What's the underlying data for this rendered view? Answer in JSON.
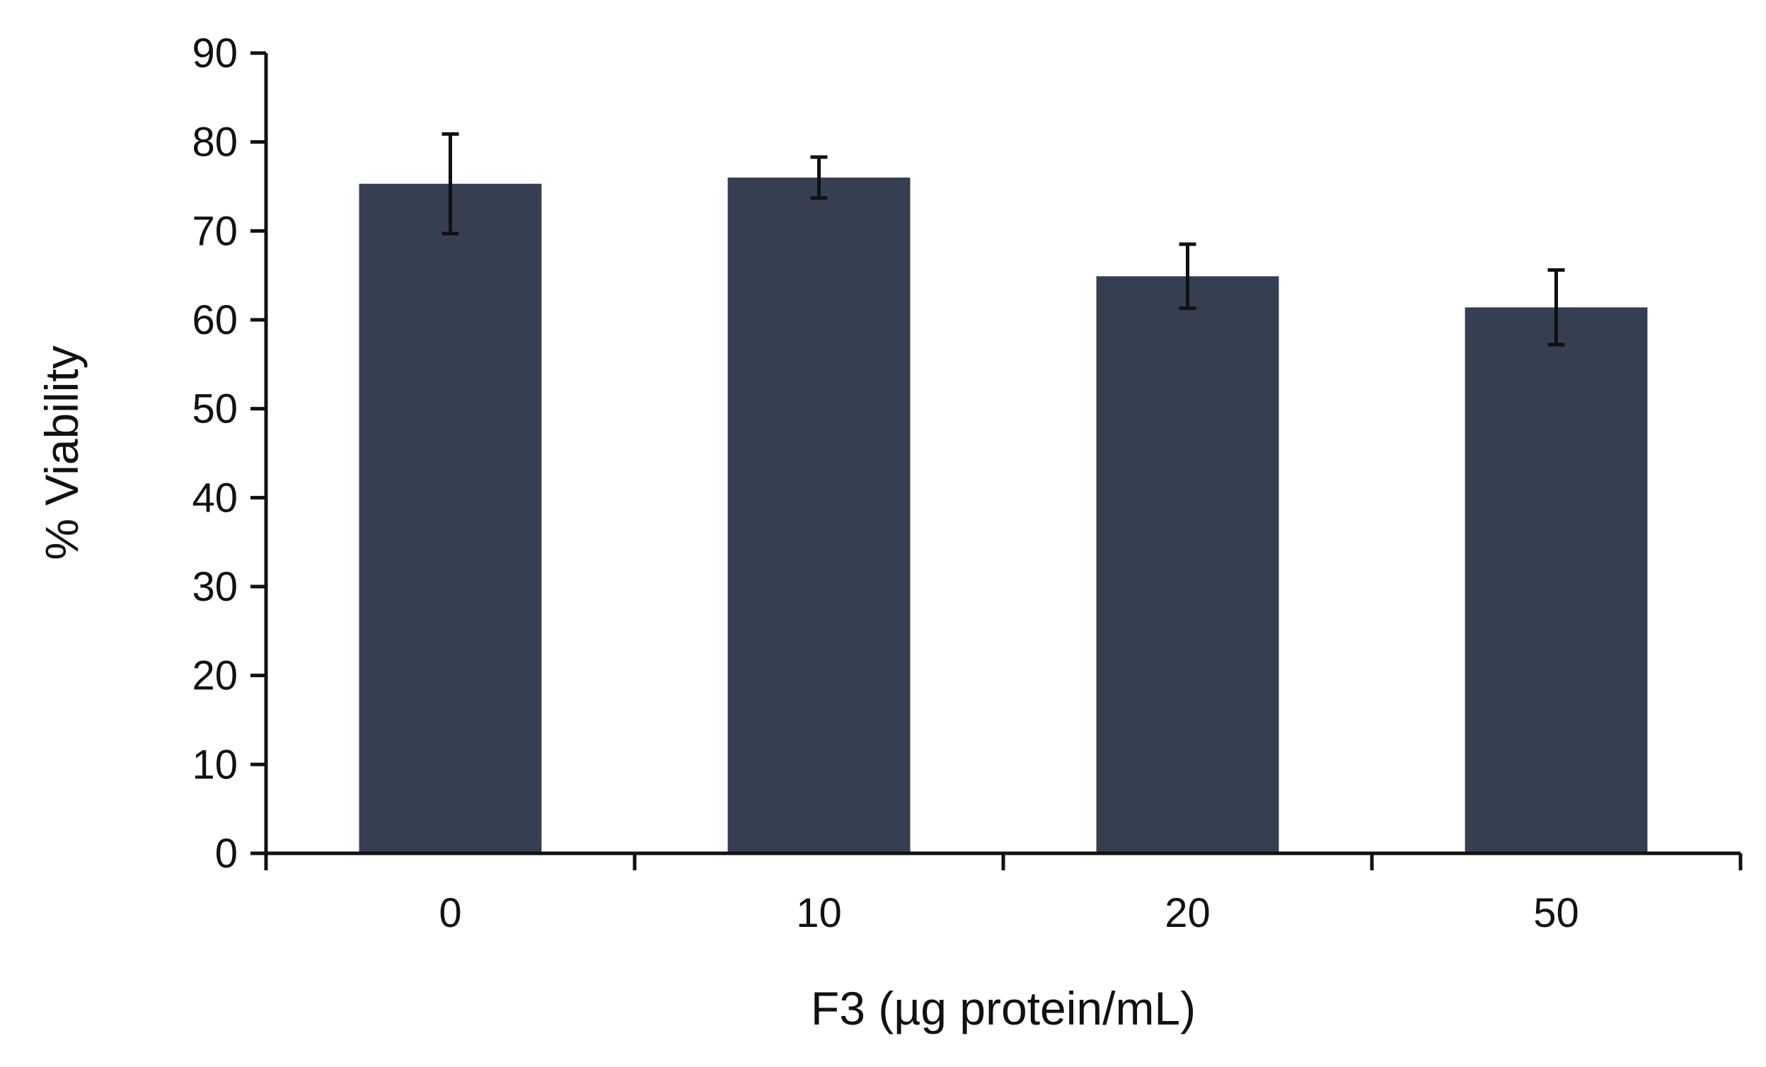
{
  "chart_data": {
    "type": "bar",
    "title": "",
    "xlabel": "F3 (µg protein/mL)",
    "ylabel": "% Viability",
    "categories": [
      "0",
      "10",
      "20",
      "50"
    ],
    "series": [
      {
        "values": [
          75.3,
          76.0,
          64.9,
          61.4
        ],
        "error": [
          5.6,
          2.3,
          3.6,
          4.2
        ]
      }
    ],
    "ylim": [
      0,
      90
    ],
    "yticks": [
      0,
      10,
      20,
      30,
      40,
      50,
      60,
      70,
      80,
      90
    ],
    "grid": false,
    "legend": "none",
    "colors": {
      "bar": "#353f51",
      "axis": "#111111",
      "error_bar": "#111111"
    }
  }
}
